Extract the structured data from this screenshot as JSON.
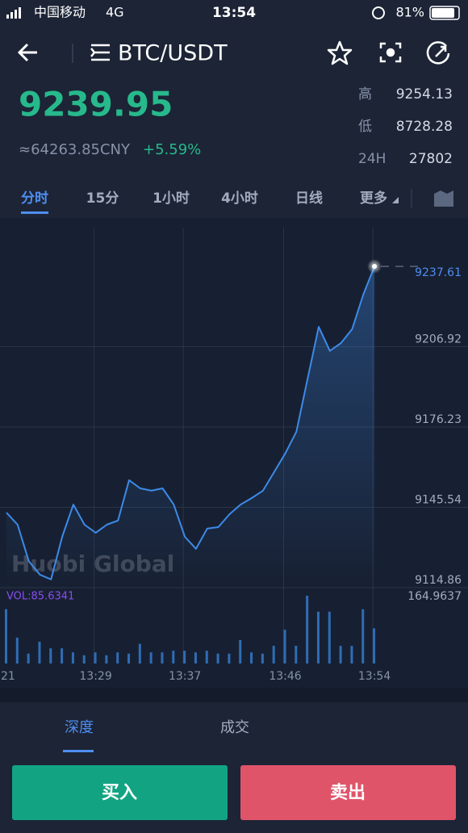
{
  "status_bar": {
    "carrier": "中国移动",
    "network": "4G",
    "time": "13:54",
    "battery": "81%"
  },
  "header": {
    "pair": "BTC/USDT"
  },
  "ticker": {
    "price": "9239.95",
    "cny": "≈64263.85CNY",
    "change": "+5.59%",
    "stats": [
      {
        "label": "高",
        "value": "9254.13"
      },
      {
        "label": "低",
        "value": "8728.28"
      },
      {
        "label": "24H",
        "value": "27802"
      }
    ]
  },
  "tabs": [
    "分时",
    "15分",
    "1小时",
    "4小时",
    "日线",
    "更多"
  ],
  "chart_data": {
    "type": "line",
    "watermark": "Huobi Global",
    "color": "#3d8ae8",
    "categories": [
      "21",
      null,
      null,
      null,
      null,
      null,
      null,
      null,
      "13:29",
      null,
      null,
      null,
      null,
      null,
      null,
      null,
      "13:37",
      null,
      null,
      null,
      null,
      null,
      null,
      null,
      null,
      "13:46",
      null,
      null,
      null,
      null,
      null,
      null,
      null,
      "13:54"
    ],
    "values": [
      9143.5,
      9138.9,
      9125.0,
      9119.8,
      9118.0,
      9134.3,
      9146.6,
      9138.9,
      9135.8,
      9138.9,
      9140.5,
      9155.9,
      9152.8,
      9151.9,
      9152.8,
      9146.6,
      9134.3,
      9129.7,
      9137.4,
      9138.0,
      9142.9,
      9146.6,
      9149.1,
      9151.9,
      9159.0,
      9166.1,
      9174.4,
      9194.5,
      9214.5,
      9205.3,
      9208.3,
      9213.6,
      9226.8,
      9237.61
    ],
    "ylim": [
      9114.86,
      9252.4
    ],
    "yticks": [
      9114.86,
      9145.54,
      9176.23,
      9206.92,
      9237.61
    ],
    "grid": true,
    "volume": {
      "label": "VOL:85.6341",
      "color": "#2f6db5",
      "ylim": [
        0,
        164.9637
      ],
      "yticks": [
        164.9637
      ],
      "values": [
        132,
        63,
        24,
        53,
        37,
        37,
        27,
        20,
        27,
        20,
        27,
        24,
        48,
        27,
        27,
        31,
        31,
        27,
        31,
        24,
        24,
        57,
        27,
        24,
        43,
        82,
        43,
        164.9637,
        126,
        126,
        43,
        43,
        132,
        85.6341
      ]
    }
  },
  "bottom_tabs": [
    "深度",
    "成交"
  ],
  "buttons": [
    "买入",
    "卖出"
  ]
}
